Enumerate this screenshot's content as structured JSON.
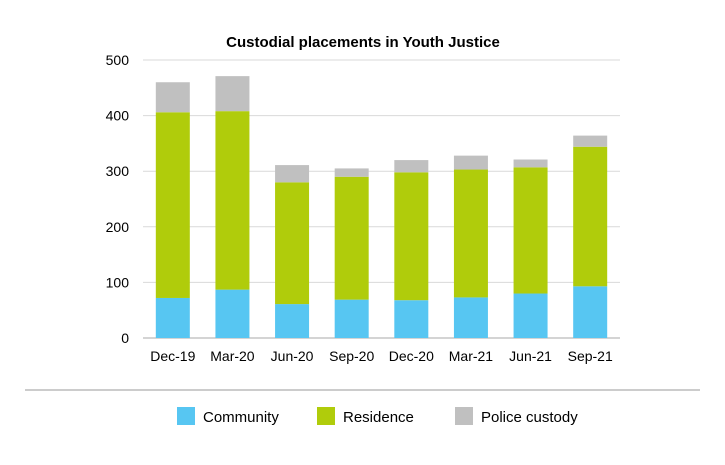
{
  "chart_data": {
    "type": "bar",
    "stacked": true,
    "title": "Custodial placements in Youth Justice",
    "xlabel": "",
    "ylabel": "",
    "categories": [
      "Dec-19",
      "Mar-20",
      "Jun-20",
      "Sep-20",
      "Dec-20",
      "Mar-21",
      "Jun-21",
      "Sep-21"
    ],
    "series": [
      {
        "name": "Community",
        "color": "#57c6f2",
        "values": [
          72,
          87,
          61,
          69,
          68,
          73,
          80,
          93
        ]
      },
      {
        "name": "Residence",
        "color": "#b0cc0b",
        "values": [
          334,
          321,
          219,
          221,
          230,
          230,
          227,
          251
        ]
      },
      {
        "name": "Police custody",
        "color": "#c0c0c0",
        "values": [
          54,
          63,
          31,
          15,
          22,
          25,
          14,
          20
        ]
      }
    ],
    "ylim": [
      0,
      500
    ],
    "yticks": [
      0,
      100,
      200,
      300,
      400,
      500
    ],
    "grid": true,
    "legend_position": "bottom"
  }
}
